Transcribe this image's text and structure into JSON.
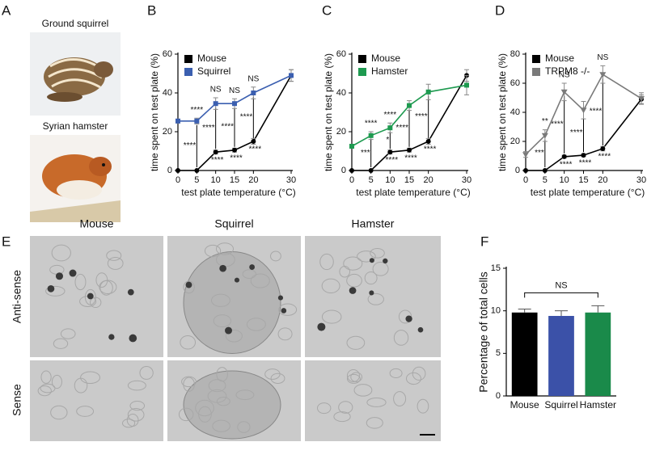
{
  "panel_labels": [
    "A",
    "B",
    "C",
    "D",
    "E",
    "F"
  ],
  "photo_labels": [
    "Ground squirrel",
    "Syrian hamster"
  ],
  "ish": {
    "columns": [
      "Mouse",
      "Squirrel",
      "Hamster"
    ],
    "rows": [
      "Anti-sense",
      "Sense"
    ]
  },
  "chart_data": [
    {
      "type": "line",
      "xlabel": "test plate temperature (°C)",
      "ylabel": "time spent on test plate (%)",
      "x": [
        0,
        5,
        10,
        15,
        20,
        30
      ],
      "xlim": [
        0,
        30
      ],
      "xticks": [
        0,
        5,
        10,
        15,
        20,
        30
      ],
      "ylim": [
        0,
        60
      ],
      "yticks": [
        0,
        20,
        40,
        60
      ],
      "series": [
        {
          "name": "Mouse",
          "color": "#000000",
          "marker": "circle",
          "values": [
            0,
            0,
            9.5,
            10.5,
            15,
            49
          ],
          "errors": [
            0,
            0,
            1,
            1,
            1.5,
            3
          ]
        },
        {
          "name": "Squirrel",
          "color": "#3b5fb0",
          "marker": "square",
          "values": [
            25.5,
            25.5,
            34.5,
            34.5,
            40,
            49
          ],
          "errors": [
            1,
            1.5,
            3,
            2.5,
            3,
            3
          ]
        }
      ],
      "sig_above": [
        null,
        "****",
        "NS",
        "NS",
        "NS",
        null
      ],
      "sig_between": [
        null,
        "****",
        "****",
        "****",
        "****",
        null
      ],
      "sig_below": [
        null,
        null,
        "****",
        "****",
        "****",
        null
      ]
    },
    {
      "type": "line",
      "xlabel": "test plate temperature (°C)",
      "ylabel": "time spent on test plate (%)",
      "x": [
        0,
        5,
        10,
        15,
        20,
        30
      ],
      "xlim": [
        0,
        30
      ],
      "xticks": [
        0,
        5,
        10,
        15,
        20,
        30
      ],
      "ylim": [
        0,
        60
      ],
      "yticks": [
        0,
        20,
        40,
        60
      ],
      "series": [
        {
          "name": "Mouse",
          "color": "#000000",
          "marker": "circle",
          "values": [
            0,
            0,
            9.5,
            10.5,
            15,
            49
          ],
          "errors": [
            0,
            0,
            1,
            1,
            1.5,
            3
          ]
        },
        {
          "name": "Hamster",
          "color": "#1e9a50",
          "marker": "square",
          "values": [
            12.5,
            18,
            22,
            33.5,
            40.5,
            44
          ],
          "errors": [
            1,
            2,
            2.5,
            2.5,
            4,
            5
          ]
        }
      ],
      "sig_above": [
        null,
        "****",
        "****",
        null,
        null,
        null
      ],
      "sig_between": [
        null,
        "***",
        "*",
        "****",
        "****",
        null
      ],
      "sig_below": [
        null,
        null,
        "****",
        "****",
        "****",
        null
      ]
    },
    {
      "type": "line",
      "xlabel": "test plate temperature (°C)",
      "ylabel": "time spent on test plate (%)",
      "x": [
        0,
        5,
        10,
        15,
        20,
        30
      ],
      "xlim": [
        0,
        30
      ],
      "xticks": [
        0,
        5,
        10,
        15,
        20,
        30
      ],
      "ylim": [
        0,
        80
      ],
      "yticks": [
        0,
        20,
        40,
        60,
        80
      ],
      "series": [
        {
          "name": "Mouse",
          "color": "#000000",
          "marker": "circle",
          "values": [
            0,
            0,
            9.5,
            10.5,
            15,
            49
          ],
          "errors": [
            0,
            0,
            1,
            1,
            1.5,
            3
          ]
        },
        {
          "name": "TRPM8 -/-",
          "color": "#7a7a7a",
          "marker": "triangle",
          "values": [
            11,
            24,
            54,
            41.5,
            66,
            49.5
          ],
          "errors": [
            2,
            4,
            6,
            6,
            6,
            4
          ]
        }
      ],
      "sig_above": [
        null,
        "**",
        "NS",
        null,
        "NS",
        null
      ],
      "sig_between": [
        null,
        "***",
        "****",
        "****",
        "****",
        null
      ],
      "sig_below": [
        null,
        null,
        "****",
        "****",
        "****",
        null
      ]
    },
    {
      "type": "bar",
      "ylabel": "Percentage of total cells",
      "categories": [
        "Mouse",
        "Squirrel",
        "Hamster"
      ],
      "values": [
        9.8,
        9.4,
        9.8
      ],
      "errors": [
        0.4,
        0.6,
        0.8
      ],
      "colors": [
        "#000000",
        "#3b51a8",
        "#1a8a4a"
      ],
      "ylim": [
        0,
        15
      ],
      "yticks": [
        0,
        5,
        10,
        15
      ],
      "annotation": "NS"
    }
  ]
}
